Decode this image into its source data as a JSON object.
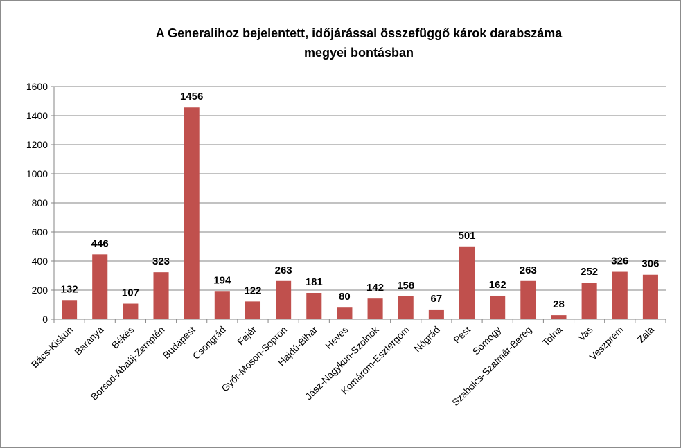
{
  "chart_data": {
    "type": "bar",
    "title_lines": [
      "A Generalihoz bejelentett, időjárással  összefüggő károk darabszáma",
      "megyei bontásban"
    ],
    "categories": [
      "Bács-Kiskun",
      "Baranya",
      "Békés",
      "Borsod-Abaúj-Zemplén",
      "Budapest",
      "Csongrád",
      "Fejér",
      "Győr-Moson-Sopron",
      "Hajdú-Bihar",
      "Heves",
      "Jász-Nagykun-Szolnok",
      "Komárom-Esztergom",
      "Nógrád",
      "Pest",
      "Somogy",
      "Szabolcs-Szatmár-Bereg",
      "Tolna",
      "Vas",
      "Veszprém",
      "Zala"
    ],
    "values": [
      132,
      446,
      107,
      323,
      1456,
      194,
      122,
      263,
      181,
      80,
      142,
      158,
      67,
      501,
      162,
      263,
      28,
      252,
      326,
      306
    ],
    "ylim": [
      0,
      1600
    ],
    "yticks": [
      0,
      200,
      400,
      600,
      800,
      1000,
      1200,
      1400,
      1600
    ],
    "grid": true,
    "legend": "none",
    "bar_color": "#C0504D",
    "grid_color": "#868686"
  }
}
